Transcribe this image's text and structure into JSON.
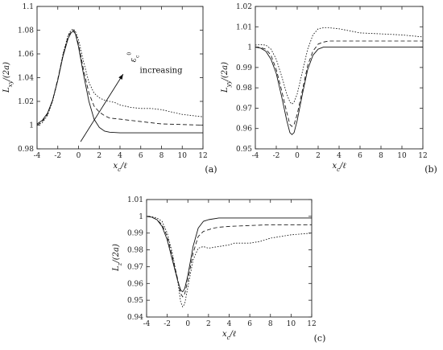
{
  "chart_data": [
    {
      "type": "line",
      "panel_label": "(a)",
      "xlabel": "x_c/ℓ",
      "ylabel": "L_xy/(2a)",
      "xlim": [
        -4,
        12
      ],
      "ylim": [
        0.98,
        1.1
      ],
      "xticks": [
        "-4",
        "-2",
        "0",
        "2",
        "4",
        "6",
        "8",
        "10",
        "12"
      ],
      "yticks": [
        "0.98",
        "1",
        "1.02",
        "1.04",
        "1.06",
        "1.08",
        "1.1"
      ],
      "annotation": "increasing",
      "annotation_symbol": "ε_c^0",
      "series": [
        {
          "style": "solid",
          "x": [
            -4,
            -3.5,
            -3,
            -2.5,
            -2,
            -1.5,
            -1,
            -0.7,
            -0.5,
            -0.3,
            0,
            0.5,
            1,
            1.5,
            2,
            2.5,
            3,
            4,
            5,
            6,
            8,
            10,
            12
          ],
          "y": [
            1.001,
            1.004,
            1.01,
            1.021,
            1.038,
            1.058,
            1.073,
            1.078,
            1.079,
            1.077,
            1.066,
            1.042,
            1.02,
            1.005,
            0.998,
            0.995,
            0.994,
            0.9935,
            0.9935,
            0.9935,
            0.9935,
            0.9935,
            0.9935
          ]
        },
        {
          "style": "dashed",
          "x": [
            -4,
            -3.5,
            -3,
            -2.5,
            -2,
            -1.5,
            -1,
            -0.7,
            -0.5,
            -0.3,
            0,
            0.5,
            1,
            1.5,
            2,
            2.5,
            3,
            4,
            5,
            6,
            7,
            8,
            10,
            12
          ],
          "y": [
            1.0,
            1.003,
            1.009,
            1.021,
            1.039,
            1.059,
            1.075,
            1.079,
            1.08,
            1.078,
            1.068,
            1.046,
            1.027,
            1.016,
            1.011,
            1.008,
            1.006,
            1.005,
            1.004,
            1.003,
            1.002,
            1.001,
            1.0005,
            1.0
          ]
        },
        {
          "style": "dotted",
          "x": [
            -4,
            -3.5,
            -3,
            -2.5,
            -2,
            -1.5,
            -1,
            -0.7,
            -0.5,
            -0.3,
            0,
            0.5,
            1,
            1.5,
            2,
            2.5,
            3,
            3.5,
            4,
            5,
            6,
            7,
            8,
            9,
            10,
            11,
            12
          ],
          "y": [
            1.0,
            1.002,
            1.008,
            1.02,
            1.038,
            1.06,
            1.076,
            1.08,
            1.081,
            1.079,
            1.072,
            1.053,
            1.036,
            1.027,
            1.023,
            1.021,
            1.02,
            1.019,
            1.017,
            1.015,
            1.014,
            1.014,
            1.013,
            1.011,
            1.009,
            1.008,
            1.007
          ]
        }
      ]
    },
    {
      "type": "line",
      "panel_label": "(b)",
      "xlabel": "x_c/ℓ",
      "ylabel": "L_yy/(2a)",
      "xlim": [
        -4,
        12
      ],
      "ylim": [
        0.95,
        1.02
      ],
      "xticks": [
        "-4",
        "-2",
        "0",
        "2",
        "4",
        "6",
        "8",
        "10",
        "12"
      ],
      "yticks": [
        "0.95",
        "0.96",
        "0.97",
        "0.98",
        "0.99",
        "1",
        "1.01",
        "1.02"
      ],
      "series": [
        {
          "style": "solid",
          "x": [
            -4,
            -3.5,
            -3,
            -2.5,
            -2,
            -1.5,
            -1,
            -0.7,
            -0.5,
            -0.3,
            0,
            0.5,
            1,
            1.5,
            2,
            2.5,
            3,
            4,
            6,
            8,
            10,
            12
          ],
          "y": [
            1.0,
            0.9995,
            0.998,
            0.994,
            0.987,
            0.976,
            0.964,
            0.958,
            0.957,
            0.958,
            0.964,
            0.977,
            0.989,
            0.996,
            0.999,
            1.0,
            1.0,
            1.0,
            1.0,
            1.0,
            1.0,
            1.0
          ]
        },
        {
          "style": "dashed",
          "x": [
            -4,
            -3.5,
            -3,
            -2.5,
            -2,
            -1.5,
            -1,
            -0.7,
            -0.5,
            -0.3,
            0,
            0.5,
            1,
            1.5,
            2,
            2.5,
            3,
            4,
            6,
            8,
            10,
            12
          ],
          "y": [
            1.0,
            0.9998,
            0.999,
            0.996,
            0.989,
            0.979,
            0.968,
            0.962,
            0.961,
            0.962,
            0.967,
            0.979,
            0.991,
            0.998,
            1.0015,
            1.0025,
            1.003,
            1.003,
            1.003,
            1.003,
            1.003,
            1.003
          ]
        },
        {
          "style": "dotted",
          "x": [
            -4,
            -3.5,
            -3,
            -2.5,
            -2,
            -1.5,
            -1,
            -0.7,
            -0.5,
            -0.3,
            0,
            0.5,
            1,
            1.5,
            2,
            2.5,
            3,
            4,
            5,
            6,
            8,
            10,
            12
          ],
          "y": [
            1.001,
            1.0012,
            1.001,
            0.999,
            0.994,
            0.986,
            0.977,
            0.973,
            0.972,
            0.973,
            0.977,
            0.988,
            0.999,
            1.006,
            1.009,
            1.0095,
            1.0095,
            1.009,
            1.008,
            1.007,
            1.0065,
            1.006,
            1.005
          ]
        }
      ]
    },
    {
      "type": "line",
      "panel_label": "(c)",
      "xlabel": "x_c/ℓ",
      "ylabel": "L_z/(2a)",
      "xlim": [
        -4,
        12
      ],
      "ylim": [
        0.94,
        1.01
      ],
      "xticks": [
        "-4",
        "-2",
        "0",
        "2",
        "4",
        "6",
        "8",
        "10",
        "12"
      ],
      "yticks": [
        "0.94",
        "0.95",
        "0.96",
        "0.97",
        "0.98",
        "0.99",
        "1",
        "1.01"
      ],
      "series": [
        {
          "style": "solid",
          "x": [
            -4,
            -3.5,
            -3,
            -2.5,
            -2,
            -1.5,
            -1,
            -0.7,
            -0.5,
            -0.3,
            0,
            0.5,
            1,
            1.5,
            2,
            3,
            4,
            6,
            8,
            10,
            12
          ],
          "y": [
            1.0,
            0.9995,
            0.998,
            0.994,
            0.986,
            0.974,
            0.962,
            0.956,
            0.955,
            0.957,
            0.965,
            0.982,
            0.993,
            0.997,
            0.998,
            0.999,
            0.999,
            0.999,
            0.999,
            0.999,
            0.999
          ]
        },
        {
          "style": "dashed",
          "x": [
            -4,
            -3.5,
            -3,
            -2.5,
            -2,
            -1.5,
            -1,
            -0.7,
            -0.5,
            -0.3,
            0,
            0.5,
            1,
            1.5,
            2,
            2.5,
            3,
            4,
            6,
            8,
            10,
            12
          ],
          "y": [
            1.0,
            0.9995,
            0.998,
            0.995,
            0.988,
            0.976,
            0.963,
            0.954,
            0.952,
            0.954,
            0.962,
            0.978,
            0.988,
            0.991,
            0.992,
            0.993,
            0.9935,
            0.994,
            0.9945,
            0.995,
            0.995,
            0.995
          ]
        },
        {
          "style": "dotted",
          "x": [
            -4,
            -3.5,
            -3,
            -2.5,
            -2,
            -1.5,
            -1,
            -0.7,
            -0.5,
            -0.3,
            0,
            0.5,
            1,
            1.5,
            2,
            2.5,
            3,
            4,
            4.5,
            5,
            6,
            7,
            8,
            9,
            10,
            11,
            12
          ],
          "y": [
            1.0,
            0.9998,
            0.999,
            0.997,
            0.99,
            0.978,
            0.962,
            0.949,
            0.946,
            0.948,
            0.958,
            0.974,
            0.981,
            0.982,
            0.981,
            0.9815,
            0.982,
            0.983,
            0.984,
            0.984,
            0.984,
            0.985,
            0.987,
            0.988,
            0.989,
            0.9895,
            0.99
          ]
        }
      ]
    }
  ]
}
